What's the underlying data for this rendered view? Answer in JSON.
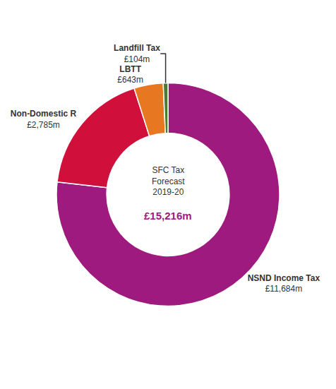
{
  "chart_data": {
    "type": "pie",
    "categories": [
      "NSND Income Tax",
      "Non-Domestic R",
      "LBTT",
      "Landfill Tax"
    ],
    "values": [
      11684,
      2785,
      643,
      104
    ],
    "value_labels": [
      "£11,684m",
      "£2,785m",
      "£643m",
      "£104m"
    ],
    "colors": [
      "#9e1a7e",
      "#d0103a",
      "#e87722",
      "#4a7c2f"
    ],
    "data_labels": true,
    "annotations": [
      "SFC Tax\nForecast\n2019-20",
      "£15,216m"
    ]
  }
}
